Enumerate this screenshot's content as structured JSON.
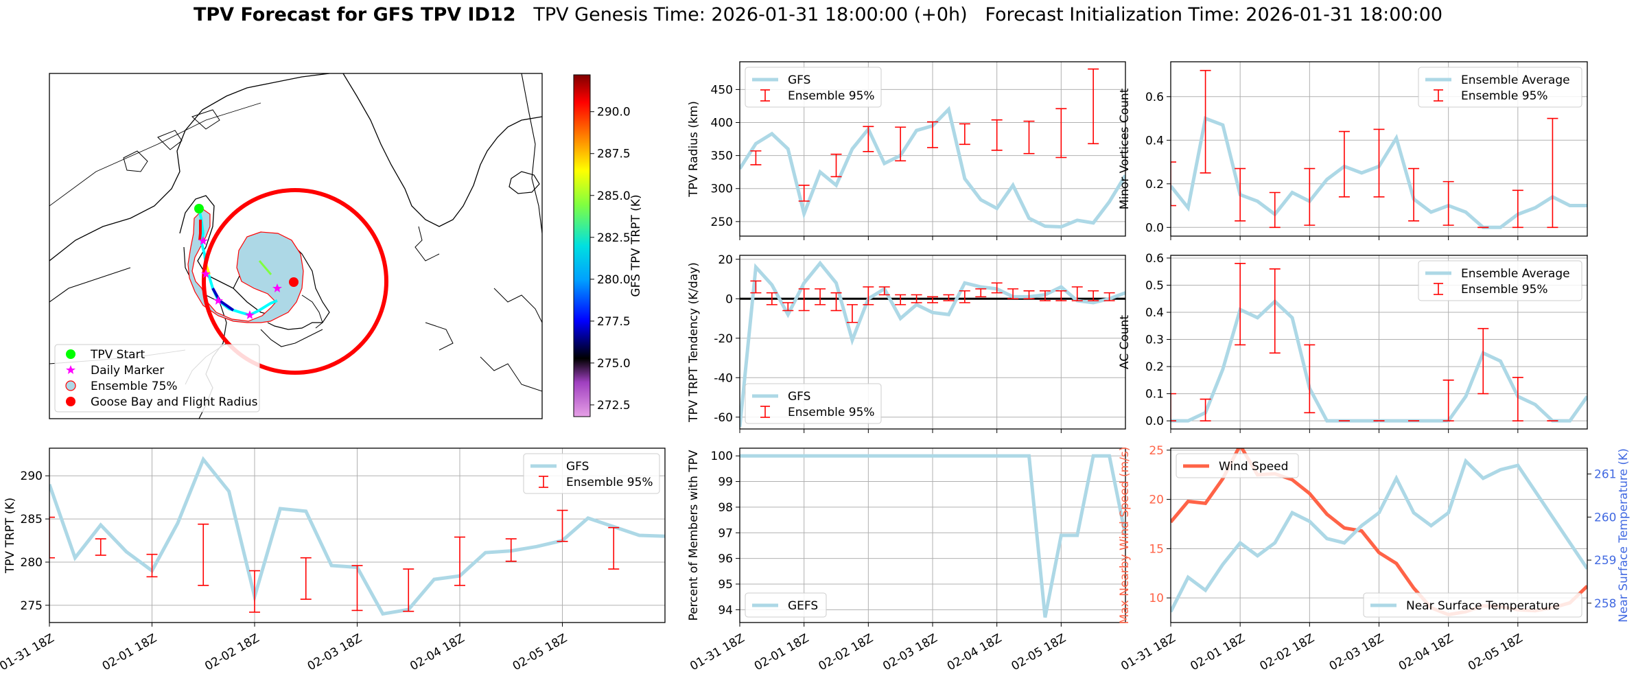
{
  "title": {
    "bold": "TPV Forecast for GFS TPV ID12",
    "genesis": "TPV Genesis Time: 2026-01-31 18:00:00 (+0h)",
    "init": "Forecast Initialization Time: 2026-01-31 18:00:00"
  },
  "colors": {
    "gfs_line": "#add8e6",
    "error_bar": "#ff0000",
    "wind_line": "#ff6347",
    "temp_axis": "#4169e1",
    "ensemble_fill": "#add8e6",
    "start_marker": "#00ff00",
    "daily_marker": "#ff00ff",
    "goose_bay": "#ff0000"
  },
  "x_ticks": [
    "01-31 18Z",
    "02-01 18Z",
    "02-02 18Z",
    "02-03 18Z",
    "02-04 18Z",
    "02-05 18Z"
  ],
  "map": {
    "colorbar_label": "GFS TPV TRPT (K)",
    "colorbar_ticks": [
      "290.0",
      "287.5",
      "285.0",
      "282.5",
      "280.0",
      "277.5",
      "275.0",
      "272.5"
    ],
    "colorbar_range": [
      271.8,
      292.2
    ],
    "legend": [
      "TPV Start",
      "Daily Marker",
      "Ensemble 75%",
      "Goose Bay and Flight Radius"
    ]
  },
  "chart_data": [
    {
      "id": "radius",
      "type": "line",
      "ylabel": "TPV Radius (km)",
      "ylim": [
        228,
        492
      ],
      "yticks": [
        250,
        300,
        350,
        400,
        450
      ],
      "legend": [
        "GFS",
        "Ensemble 95%"
      ],
      "legend_position": "upper-left",
      "grid": true,
      "x": [
        0,
        1,
        2,
        3,
        4,
        5,
        6,
        7,
        8,
        9,
        10,
        11,
        12,
        13,
        14,
        15,
        16,
        17,
        18,
        19,
        20,
        21,
        22,
        23,
        24
      ],
      "values": [
        330,
        368,
        383,
        360,
        262,
        325,
        305,
        360,
        390,
        338,
        350,
        388,
        395,
        420,
        315,
        283,
        270,
        305,
        255,
        243,
        242,
        252,
        248,
        280,
        320
      ],
      "error_bars": [
        {
          "x": 1,
          "low": 336,
          "high": 357
        },
        {
          "x": 4,
          "low": 281,
          "high": 305
        },
        {
          "x": 6,
          "low": 318,
          "high": 352
        },
        {
          "x": 8,
          "low": 356,
          "high": 394
        },
        {
          "x": 10,
          "low": 342,
          "high": 393
        },
        {
          "x": 12,
          "low": 362,
          "high": 401
        },
        {
          "x": 14,
          "low": 367,
          "high": 398
        },
        {
          "x": 16,
          "low": 358,
          "high": 404
        },
        {
          "x": 18,
          "low": 353,
          "high": 402
        },
        {
          "x": 20,
          "low": 347,
          "high": 421
        },
        {
          "x": 22,
          "low": 368,
          "high": 481
        }
      ]
    },
    {
      "id": "tendency",
      "type": "line",
      "ylabel": "TPV TRPT Tendency (K/day)",
      "ylim": [
        -66,
        22
      ],
      "yticks": [
        -60,
        -40,
        -20,
        0,
        20
      ],
      "legend": [
        "GFS",
        "Ensemble 95%"
      ],
      "legend_position": "lower-left",
      "grid": true,
      "zero_line": true,
      "x": [
        0,
        1,
        2,
        3,
        4,
        5,
        6,
        7,
        8,
        9,
        10,
        11,
        12,
        13,
        14,
        15,
        16,
        17,
        18,
        19,
        20,
        21,
        22,
        23,
        24
      ],
      "values": [
        -65,
        16,
        7,
        -8,
        8,
        18,
        8,
        -21,
        0,
        5,
        -10,
        -3,
        -7,
        -8,
        8,
        6,
        5,
        1,
        1,
        2,
        6,
        -1,
        -2,
        0,
        3
      ],
      "error_bars": [
        {
          "x": 1,
          "low": 3,
          "high": 9
        },
        {
          "x": 2,
          "low": -3,
          "high": 3
        },
        {
          "x": 3,
          "low": -6,
          "high": -2
        },
        {
          "x": 4,
          "low": -6,
          "high": 5
        },
        {
          "x": 5,
          "low": -3,
          "high": 5
        },
        {
          "x": 6,
          "low": -6,
          "high": 3
        },
        {
          "x": 7,
          "low": -12,
          "high": -3
        },
        {
          "x": 8,
          "low": -3,
          "high": 6
        },
        {
          "x": 9,
          "low": 2,
          "high": 6
        },
        {
          "x": 10,
          "low": -3,
          "high": 2
        },
        {
          "x": 11,
          "low": -2,
          "high": 2
        },
        {
          "x": 12,
          "low": -2,
          "high": 1
        },
        {
          "x": 13,
          "low": -1,
          "high": 2
        },
        {
          "x": 14,
          "low": -2,
          "high": 4
        },
        {
          "x": 15,
          "low": 1,
          "high": 5
        },
        {
          "x": 16,
          "low": 3,
          "high": 8
        },
        {
          "x": 17,
          "low": 0,
          "high": 5
        },
        {
          "x": 18,
          "low": 0,
          "high": 4
        },
        {
          "x": 19,
          "low": -1,
          "high": 4
        },
        {
          "x": 20,
          "low": -1,
          "high": 4
        },
        {
          "x": 21,
          "low": -1,
          "high": 6
        },
        {
          "x": 22,
          "low": -1,
          "high": 4
        },
        {
          "x": 23,
          "low": -1,
          "high": 3
        }
      ]
    },
    {
      "id": "minor",
      "type": "line",
      "ylabel": "Minor Vortices Count",
      "ylim": [
        -0.04,
        0.76
      ],
      "yticks": [
        0.0,
        0.2,
        0.4,
        0.6
      ],
      "tick_format": 1,
      "legend": [
        "Ensemble Average",
        "Ensemble 95%"
      ],
      "legend_position": "upper-right",
      "grid": true,
      "x": [
        0,
        1,
        2,
        3,
        4,
        5,
        6,
        7,
        8,
        9,
        10,
        11,
        12,
        13,
        14,
        15,
        16,
        17,
        18,
        19,
        20,
        21,
        22,
        23,
        24
      ],
      "values": [
        0.19,
        0.09,
        0.5,
        0.47,
        0.15,
        0.12,
        0.06,
        0.16,
        0.12,
        0.22,
        0.28,
        0.25,
        0.28,
        0.41,
        0.13,
        0.07,
        0.1,
        0.07,
        0.0,
        0.0,
        0.06,
        0.09,
        0.14,
        0.1,
        0.1
      ],
      "error_bars": [
        {
          "x": 0,
          "low": 0.1,
          "high": 0.3
        },
        {
          "x": 2,
          "low": 0.25,
          "high": 0.72
        },
        {
          "x": 4,
          "low": 0.03,
          "high": 0.27
        },
        {
          "x": 6,
          "low": 0.0,
          "high": 0.16
        },
        {
          "x": 8,
          "low": 0.01,
          "high": 0.27
        },
        {
          "x": 10,
          "low": 0.14,
          "high": 0.44
        },
        {
          "x": 12,
          "low": 0.14,
          "high": 0.45
        },
        {
          "x": 14,
          "low": 0.03,
          "high": 0.27
        },
        {
          "x": 16,
          "low": 0.01,
          "high": 0.21
        },
        {
          "x": 18,
          "low": 0.0,
          "high": 0.0
        },
        {
          "x": 20,
          "low": 0.0,
          "high": 0.17
        },
        {
          "x": 22,
          "low": 0.0,
          "high": 0.5
        }
      ]
    },
    {
      "id": "ac",
      "type": "line",
      "ylabel": "AC Count",
      "ylim": [
        -0.03,
        0.61
      ],
      "yticks": [
        0.0,
        0.1,
        0.2,
        0.3,
        0.4,
        0.5,
        0.6
      ],
      "tick_format": 1,
      "legend": [
        "Ensemble Average",
        "Ensemble 95%"
      ],
      "legend_position": "upper-right",
      "grid": true,
      "x": [
        0,
        1,
        2,
        3,
        4,
        5,
        6,
        7,
        8,
        9,
        10,
        11,
        12,
        13,
        14,
        15,
        16,
        17,
        18,
        19,
        20,
        21,
        22,
        23,
        24
      ],
      "values": [
        0.0,
        0.0,
        0.03,
        0.19,
        0.41,
        0.38,
        0.44,
        0.38,
        0.12,
        0.0,
        0.0,
        0.0,
        0.0,
        0.0,
        0.0,
        0.0,
        0.0,
        0.09,
        0.25,
        0.22,
        0.09,
        0.06,
        0.0,
        0.0,
        0.09
      ],
      "error_bars": [
        {
          "x": 0,
          "low": 0.0,
          "high": 0.1
        },
        {
          "x": 2,
          "low": 0.0,
          "high": 0.08
        },
        {
          "x": 4,
          "low": 0.28,
          "high": 0.58
        },
        {
          "x": 6,
          "low": 0.25,
          "high": 0.56
        },
        {
          "x": 8,
          "low": 0.03,
          "high": 0.28
        },
        {
          "x": 10,
          "low": 0.0,
          "high": 0.0
        },
        {
          "x": 12,
          "low": 0.0,
          "high": 0.0
        },
        {
          "x": 14,
          "low": 0.0,
          "high": 0.0
        },
        {
          "x": 16,
          "low": 0.0,
          "high": 0.15
        },
        {
          "x": 18,
          "low": 0.1,
          "high": 0.34
        },
        {
          "x": 20,
          "low": 0.0,
          "high": 0.16
        },
        {
          "x": 22,
          "low": 0.0,
          "high": 0.0
        }
      ]
    },
    {
      "id": "trpt",
      "type": "line",
      "ylabel": "TPV TRPT (K)",
      "ylim": [
        273.0,
        293.2
      ],
      "yticks": [
        275,
        280,
        285,
        290
      ],
      "legend": [
        "GFS",
        "Ensemble 95%"
      ],
      "legend_position": "upper-right",
      "grid": true,
      "x_labels_visible": true,
      "x": [
        0,
        1,
        2,
        3,
        4,
        5,
        6,
        7,
        8,
        9,
        10,
        11,
        12,
        13,
        14,
        15,
        16,
        17,
        18,
        19,
        20,
        21,
        22,
        23,
        24
      ],
      "values": [
        289,
        280.5,
        284.3,
        281.2,
        279,
        284.5,
        291.9,
        288.2,
        276,
        286.2,
        285.9,
        279.6,
        279.4,
        274,
        274.5,
        278,
        278.4,
        281.1,
        281.3,
        281.8,
        282.5,
        285.1,
        284.1,
        283.1,
        283
      ],
      "error_bars": [
        {
          "x": 0,
          "low": 280.5,
          "high": 285.2
        },
        {
          "x": 2,
          "low": 280.8,
          "high": 282.7
        },
        {
          "x": 4,
          "low": 278.3,
          "high": 280.9
        },
        {
          "x": 6,
          "low": 277.3,
          "high": 284.4
        },
        {
          "x": 8,
          "low": 274.2,
          "high": 279
        },
        {
          "x": 10,
          "low": 275.7,
          "high": 280.5
        },
        {
          "x": 12,
          "low": 274.4,
          "high": 279.6
        },
        {
          "x": 14,
          "low": 274.3,
          "high": 279.2
        },
        {
          "x": 16,
          "low": 277.3,
          "high": 282.9
        },
        {
          "x": 18,
          "low": 280.1,
          "high": 282.7
        },
        {
          "x": 20,
          "low": 282.4,
          "high": 286
        },
        {
          "x": 22,
          "low": 279.2,
          "high": 284
        }
      ]
    },
    {
      "id": "percent",
      "type": "line",
      "ylabel": "Percent of Members with TPV",
      "ylim": [
        93.5,
        100.3
      ],
      "yticks": [
        94,
        95,
        96,
        97,
        98,
        99,
        100
      ],
      "legend": [
        "GEFS"
      ],
      "legend_position": "lower-left",
      "grid": true,
      "x_labels_visible": true,
      "x": [
        0,
        1,
        2,
        3,
        4,
        5,
        6,
        7,
        8,
        9,
        10,
        11,
        12,
        13,
        14,
        15,
        16,
        17,
        18,
        19,
        20,
        21,
        22,
        23,
        24
      ],
      "values": [
        100,
        100,
        100,
        100,
        100,
        100,
        100,
        100,
        100,
        100,
        100,
        100,
        100,
        100,
        100,
        100,
        100,
        100,
        100,
        93.7,
        96.9,
        96.9,
        100,
        100,
        96.9
      ]
    },
    {
      "id": "wind_temp",
      "type": "line",
      "ylabel": "Max Nearby Wind Speed (m/s)",
      "ylabel_right": "Near Surface Temperature (K)",
      "ylim": [
        7.5,
        25.2
      ],
      "yticks": [
        10,
        15,
        20,
        25
      ],
      "ylim_right": [
        257.55,
        261.6
      ],
      "yticks_right": [
        258,
        259,
        260,
        261
      ],
      "grid": true,
      "x_labels_visible": true,
      "x": [
        0,
        1,
        2,
        3,
        4,
        5,
        6,
        7,
        8,
        9,
        10,
        11,
        12,
        13,
        14,
        15,
        16,
        17,
        18,
        19,
        20,
        21,
        22,
        23,
        24
      ],
      "series": [
        {
          "name": "Wind Speed",
          "axis": "left",
          "legend_position": "upper-left",
          "values": [
            17.7,
            19.8,
            19.6,
            22.1,
            25.5,
            22.5,
            22.6,
            22,
            20.6,
            18.5,
            17.1,
            16.8,
            14.6,
            13.5,
            11,
            9,
            8.3,
            8.6,
            9.2,
            9.1,
            8.8,
            8.7,
            9,
            9.5,
            11.2
          ]
        },
        {
          "name": "Near Surface Temperature",
          "axis": "right",
          "legend_position": "lower-right",
          "values": [
            257.8,
            258.6,
            258.3,
            258.9,
            259.4,
            259.1,
            259.4,
            260.1,
            259.9,
            259.5,
            259.4,
            259.8,
            260.1,
            260.9,
            260.1,
            259.8,
            260.1,
            261.3,
            260.9,
            261.1,
            261.2,
            260.6,
            260,
            259.4,
            258.8
          ]
        }
      ]
    }
  ]
}
